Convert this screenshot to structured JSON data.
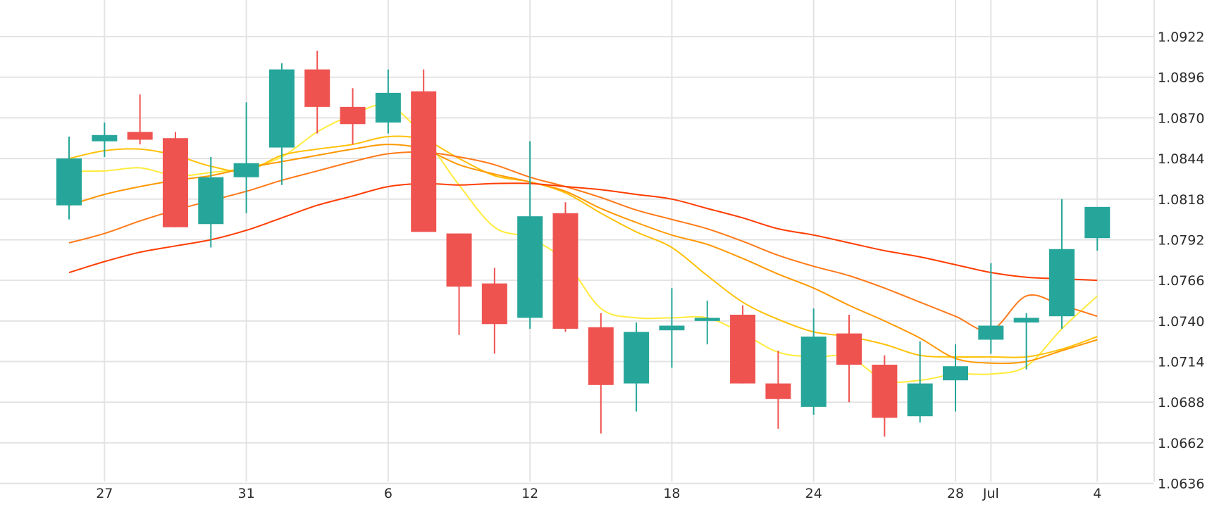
{
  "chart_data": {
    "type": "candlestick",
    "title": "",
    "xlabel": "",
    "ylabel": "",
    "ylim": [
      1.061,
      1.0935
    ],
    "grid": true,
    "y_ticks": [
      1.0636,
      1.0662,
      1.0688,
      1.0714,
      1.074,
      1.0766,
      1.0792,
      1.0818,
      1.0844,
      1.087,
      1.0896,
      1.0922
    ],
    "y_tick_labels": [
      "1.0636",
      "1.0662",
      "1.0688",
      "1.0714",
      "1.0740",
      "1.0766",
      "1.0792",
      "1.0818",
      "1.0844",
      "1.0870",
      "1.0896",
      "1.0922"
    ],
    "x_tick_labels": [
      {
        "index": 1,
        "label": "27"
      },
      {
        "index": 5,
        "label": "31"
      },
      {
        "index": 9,
        "label": "6"
      },
      {
        "index": 13,
        "label": "12"
      },
      {
        "index": 17,
        "label": "18"
      },
      {
        "index": 21,
        "label": "24"
      },
      {
        "index": 25,
        "label": "28"
      },
      {
        "index": 26,
        "label": "Jul"
      },
      {
        "index": 29,
        "label": "4"
      }
    ],
    "colors": {
      "up": "#26a69a",
      "down": "#ef5350",
      "grid": "#e3e3e3"
    },
    "candles": [
      {
        "o": 1.0814,
        "h": 1.0858,
        "l": 1.0805,
        "c": 1.0844
      },
      {
        "o": 1.0855,
        "h": 1.0867,
        "l": 1.0845,
        "c": 1.0859
      },
      {
        "o": 1.0861,
        "h": 1.0885,
        "l": 1.0853,
        "c": 1.0856
      },
      {
        "o": 1.0857,
        "h": 1.0861,
        "l": 1.08,
        "c": 1.08
      },
      {
        "o": 1.0802,
        "h": 1.0845,
        "l": 1.0787,
        "c": 1.0832
      },
      {
        "o": 1.0832,
        "h": 1.088,
        "l": 1.0809,
        "c": 1.0841
      },
      {
        "o": 1.0851,
        "h": 1.0905,
        "l": 1.0827,
        "c": 1.0901
      },
      {
        "o": 1.0901,
        "h": 1.0913,
        "l": 1.086,
        "c": 1.0877
      },
      {
        "o": 1.0877,
        "h": 1.0889,
        "l": 1.0853,
        "c": 1.0866
      },
      {
        "o": 1.0867,
        "h": 1.0901,
        "l": 1.086,
        "c": 1.0886
      },
      {
        "o": 1.0887,
        "h": 1.0901,
        "l": 1.0799,
        "c": 1.0797
      },
      {
        "o": 1.0796,
        "h": 1.0796,
        "l": 1.0731,
        "c": 1.0762
      },
      {
        "o": 1.0764,
        "h": 1.0774,
        "l": 1.0719,
        "c": 1.0738
      },
      {
        "o": 1.0742,
        "h": 1.0855,
        "l": 1.0735,
        "c": 1.0807
      },
      {
        "o": 1.0809,
        "h": 1.0816,
        "l": 1.0733,
        "c": 1.0735
      },
      {
        "o": 1.0736,
        "h": 1.0745,
        "l": 1.0668,
        "c": 1.0699
      },
      {
        "o": 1.07,
        "h": 1.0739,
        "l": 1.0682,
        "c": 1.0733
      },
      {
        "o": 1.0734,
        "h": 1.0761,
        "l": 1.071,
        "c": 1.0737
      },
      {
        "o": 1.074,
        "h": 1.0753,
        "l": 1.0725,
        "c": 1.0742
      },
      {
        "o": 1.0744,
        "h": 1.075,
        "l": 1.07,
        "c": 1.07
      },
      {
        "o": 1.07,
        "h": 1.0721,
        "l": 1.0671,
        "c": 1.069
      },
      {
        "o": 1.0685,
        "h": 1.0748,
        "l": 1.068,
        "c": 1.073
      },
      {
        "o": 1.0732,
        "h": 1.0744,
        "l": 1.0688,
        "c": 1.0712
      },
      {
        "o": 1.0712,
        "h": 1.0718,
        "l": 1.0666,
        "c": 1.0678
      },
      {
        "o": 1.0679,
        "h": 1.0727,
        "l": 1.0675,
        "c": 1.07
      },
      {
        "o": 1.0702,
        "h": 1.0725,
        "l": 1.0682,
        "c": 1.0711
      },
      {
        "o": 1.0728,
        "h": 1.0777,
        "l": 1.0719,
        "c": 1.0737
      },
      {
        "o": 1.0739,
        "h": 1.0745,
        "l": 1.0709,
        "c": 1.0742
      },
      {
        "o": 1.0743,
        "h": 1.0818,
        "l": 1.0735,
        "c": 1.0786
      },
      {
        "o": 1.0793,
        "h": 1.0812,
        "l": 1.0785,
        "c": 1.0813
      }
    ],
    "series": [
      {
        "color": "#ffeb3b",
        "values": [
          1.0836,
          1.0836,
          1.0838,
          1.0833,
          1.0835,
          1.0838,
          1.0845,
          1.0861,
          1.0872,
          1.0878,
          1.0858,
          1.0827,
          1.08,
          1.0793,
          1.0778,
          1.0748,
          1.0742,
          1.0742,
          1.0742,
          1.0732,
          1.072,
          1.0717,
          1.0717,
          1.0702,
          1.0702,
          1.0706,
          1.0706,
          1.0711,
          1.0735,
          1.0756
        ]
      },
      {
        "color": "#ffc107",
        "values": [
          1.0844,
          1.0849,
          1.085,
          1.0846,
          1.0839,
          1.0836,
          1.0846,
          1.085,
          1.0853,
          1.0858,
          1.0856,
          1.0844,
          1.0833,
          1.0829,
          1.0822,
          1.0809,
          1.0797,
          1.0787,
          1.0769,
          1.0752,
          1.0741,
          1.0733,
          1.073,
          1.0725,
          1.0718,
          1.0717,
          1.0717,
          1.0717,
          1.0722,
          1.073
        ]
      },
      {
        "color": "#ff9800",
        "values": [
          1.0814,
          1.0821,
          1.0826,
          1.083,
          1.0833,
          1.0838,
          1.0842,
          1.0846,
          1.085,
          1.0853,
          1.085,
          1.084,
          1.0834,
          1.0829,
          1.0823,
          1.0812,
          1.0803,
          1.0795,
          1.0789,
          1.078,
          1.077,
          1.0761,
          1.075,
          1.074,
          1.0729,
          1.0716,
          1.0713,
          1.0714,
          1.0721,
          1.0728
        ]
      },
      {
        "color": "#ff7a1a",
        "values": [
          1.079,
          1.0796,
          1.0804,
          1.0811,
          1.0817,
          1.0823,
          1.083,
          1.0836,
          1.0842,
          1.0847,
          1.0848,
          1.0845,
          1.084,
          1.0832,
          1.0826,
          1.0819,
          1.0811,
          1.0805,
          1.0799,
          1.0791,
          1.0782,
          1.0775,
          1.0769,
          1.0761,
          1.0752,
          1.0743,
          1.0734,
          1.0756,
          1.075,
          1.0743
        ]
      },
      {
        "color": "#ff3d00",
        "values": [
          1.0771,
          1.0778,
          1.0784,
          1.0788,
          1.0792,
          1.0798,
          1.0806,
          1.0814,
          1.082,
          1.0826,
          1.0828,
          1.0827,
          1.0828,
          1.0828,
          1.0826,
          1.0824,
          1.0821,
          1.0818,
          1.0812,
          1.0806,
          1.0799,
          1.0795,
          1.079,
          1.0785,
          1.0781,
          1.0776,
          1.0771,
          1.0768,
          1.0767,
          1.0766
        ]
      }
    ]
  }
}
